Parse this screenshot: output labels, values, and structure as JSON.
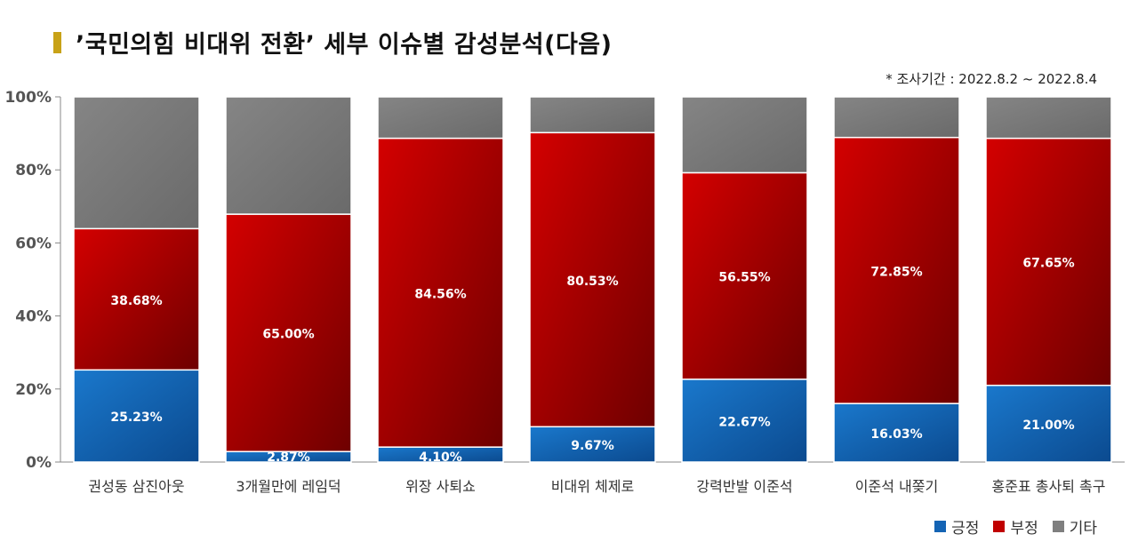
{
  "title": "’국민의힘 비대위 전환’ 세부 이슈별 감성분석(다음)",
  "period": "* 조사기간 : 2022.8.2 ~ 2022.8.4",
  "chart_data": {
    "type": "bar",
    "stacked": true,
    "percent": true,
    "categories": [
      "권성동 삼진아웃",
      "3개월만에 레임덕",
      "위장 사퇴쇼",
      "비대위 체제로",
      "강력반발 이준석",
      "이준석 내쫒기",
      "홍준표 총사퇴 촉구"
    ],
    "series": [
      {
        "name": "긍정",
        "color": "#1464b4",
        "values": [
          25.23,
          2.87,
          4.1,
          9.67,
          22.67,
          16.03,
          21.0
        ],
        "labels": [
          "25.23%",
          "2.87%",
          "4.10%",
          "9.67%",
          "22.67%",
          "16.03%",
          "21.00%"
        ]
      },
      {
        "name": "부정",
        "color": "#c00000",
        "values": [
          38.68,
          65.0,
          84.56,
          80.53,
          56.55,
          72.85,
          67.65
        ],
        "labels": [
          "38.68%",
          "65.00%",
          "84.56%",
          "80.53%",
          "56.55%",
          "72.85%",
          "67.65%"
        ]
      },
      {
        "name": "기타",
        "color": "#7f7f7f",
        "values": [
          36.09,
          32.13,
          11.34,
          9.8,
          20.78,
          11.12,
          11.35
        ]
      }
    ],
    "yticks": [
      "0%",
      "20%",
      "40%",
      "60%",
      "80%",
      "100%"
    ],
    "ylim": [
      0,
      100
    ],
    "legend_position": "bottom-right"
  }
}
